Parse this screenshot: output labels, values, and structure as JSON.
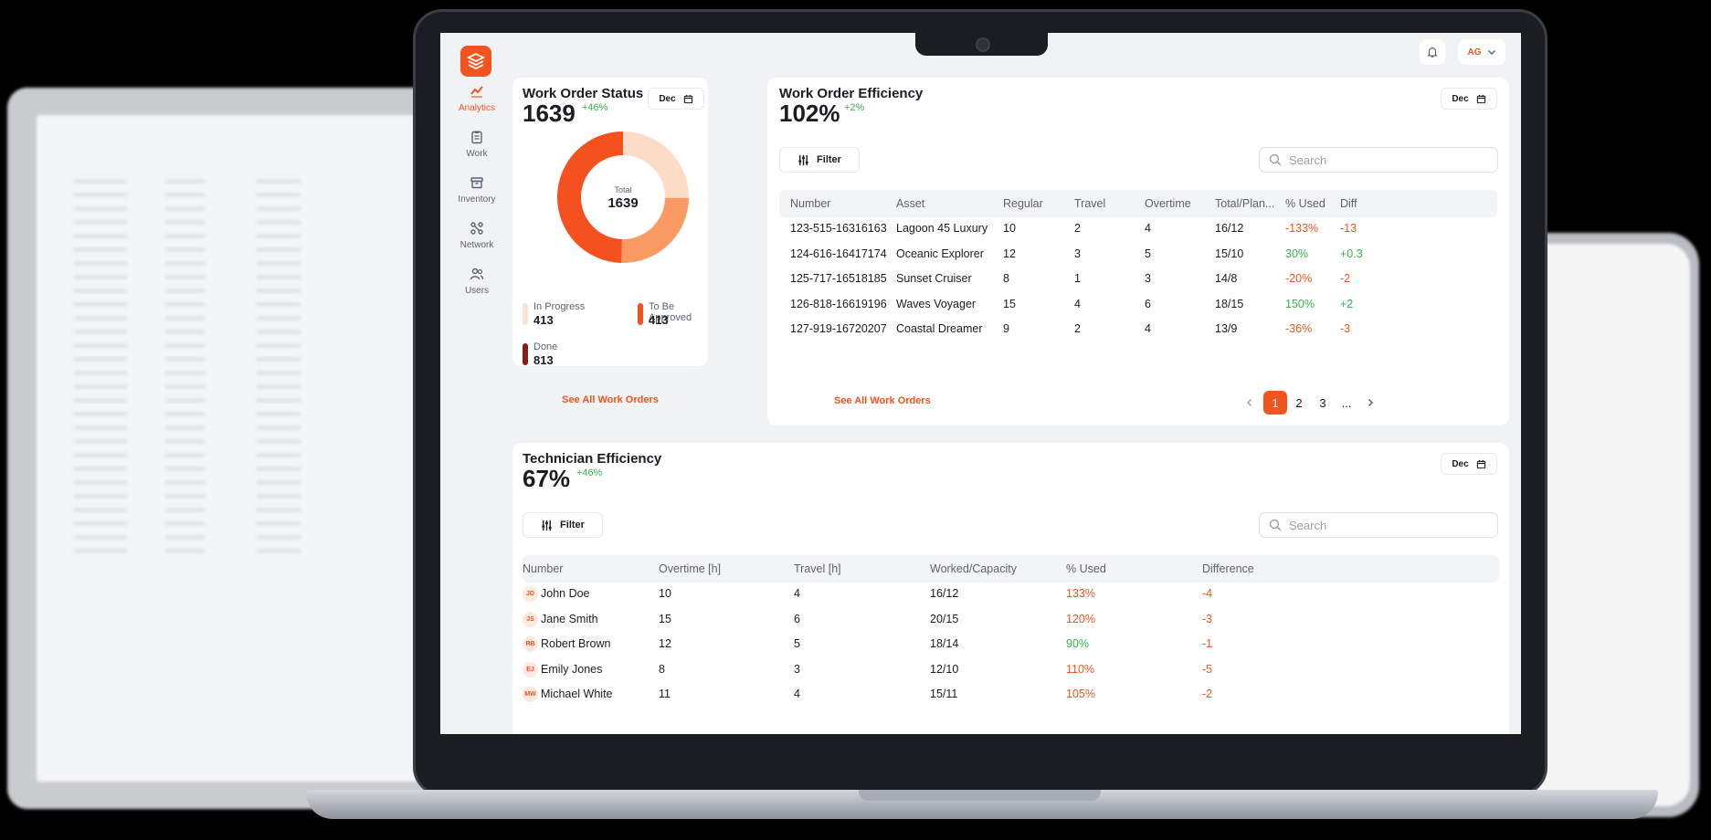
{
  "sidebar": {
    "items": [
      {
        "label": "Analytics",
        "icon": "chart-line-icon"
      },
      {
        "label": "Work",
        "icon": "clipboard-icon"
      },
      {
        "label": "Inventory",
        "icon": "box-icon"
      },
      {
        "label": "Network",
        "icon": "network-icon"
      },
      {
        "label": "Users",
        "icon": "users-icon"
      }
    ]
  },
  "header": {
    "user_initials": "AG"
  },
  "work_order_status": {
    "title": "Work Order Status",
    "total": "1639",
    "delta": "+46%",
    "month": "Dec",
    "donut_label": "Total",
    "donut_value": "1639",
    "segments": [
      {
        "label": "In Progress",
        "value": 413,
        "value_text": "413",
        "color": "#fcdcc6"
      },
      {
        "label": "To Be Approved",
        "value": 413,
        "value_text": "413",
        "color": "#fa9a62"
      },
      {
        "label": "Done",
        "value": 813,
        "value_text": "813",
        "color": "#f4511e"
      }
    ],
    "legend_colors": [
      "#fce4d4",
      "#f4511e",
      "#8a1c1c"
    ],
    "see_all": "See All Work Orders"
  },
  "work_order_efficiency": {
    "title": "Work Order Efficiency",
    "value": "102%",
    "delta": "+2%",
    "month": "Dec",
    "filter_label": "Filter",
    "search_placeholder": "Search",
    "columns": [
      "Number",
      "Asset",
      "Regular",
      "Travel",
      "Overtime",
      "Total/Plan...",
      "% Used",
      "Diff"
    ],
    "rows": [
      {
        "number": "123-515-16316163",
        "asset": "Lagoon 45 Luxury",
        "regular": "10",
        "travel": "2",
        "overtime": "4",
        "total": "16/12",
        "used": "-133%",
        "diff": "-13",
        "used_color": "red",
        "diff_color": "red"
      },
      {
        "number": "124-616-16417174",
        "asset": "Oceanic Explorer",
        "regular": "12",
        "travel": "3",
        "overtime": "5",
        "total": "15/10",
        "used": "30%",
        "diff": "+0.3",
        "used_color": "green",
        "diff_color": "green"
      },
      {
        "number": "125-717-16518185",
        "asset": "Sunset Cruiser",
        "regular": "8",
        "travel": "1",
        "overtime": "3",
        "total": "14/8",
        "used": "-20%",
        "diff": "-2",
        "used_color": "red",
        "diff_color": "red"
      },
      {
        "number": "126-818-16619196",
        "asset": "Waves Voyager",
        "regular": "15",
        "travel": "4",
        "overtime": "6",
        "total": "18/15",
        "used": "150%",
        "diff": "+2",
        "used_color": "green",
        "diff_color": "green"
      },
      {
        "number": "127-919-16720207",
        "asset": "Coastal Dreamer",
        "regular": "9",
        "travel": "2",
        "overtime": "4",
        "total": "13/9",
        "used": "-36%",
        "diff": "-3",
        "used_color": "red",
        "diff_color": "red"
      }
    ],
    "see_all": "See All Work Orders",
    "pagination": {
      "pages": [
        "1",
        "2",
        "3",
        "..."
      ],
      "active": "1"
    }
  },
  "technician_efficiency": {
    "title": "Technician Efficiency",
    "value": "67%",
    "delta": "+46%",
    "month": "Dec",
    "filter_label": "Filter",
    "search_placeholder": "Search",
    "columns": [
      "Number",
      "Overtime [h]",
      "Travel [h]",
      "Worked/Capacity",
      "% Used",
      "Difference"
    ],
    "rows": [
      {
        "initials": "JD",
        "name": "John Doe",
        "overtime": "10",
        "travel": "4",
        "worked": "16/12",
        "used": "133%",
        "diff": "-4",
        "used_color": "red"
      },
      {
        "initials": "JS",
        "name": "Jane Smith",
        "overtime": "15",
        "travel": "6",
        "worked": "20/15",
        "used": "120%",
        "diff": "-3",
        "used_color": "red"
      },
      {
        "initials": "RB",
        "name": "Robert Brown",
        "overtime": "12",
        "travel": "5",
        "worked": "18/14",
        "used": "90%",
        "diff": "-1",
        "used_color": "green"
      },
      {
        "initials": "EJ",
        "name": "Emily Jones",
        "overtime": "8",
        "travel": "3",
        "worked": "12/10",
        "used": "110%",
        "diff": "-5",
        "used_color": "red"
      },
      {
        "initials": "MW",
        "name": "Michael White",
        "overtime": "11",
        "travel": "4",
        "worked": "15/11",
        "used": "105%",
        "diff": "-2",
        "used_color": "red"
      }
    ]
  }
}
